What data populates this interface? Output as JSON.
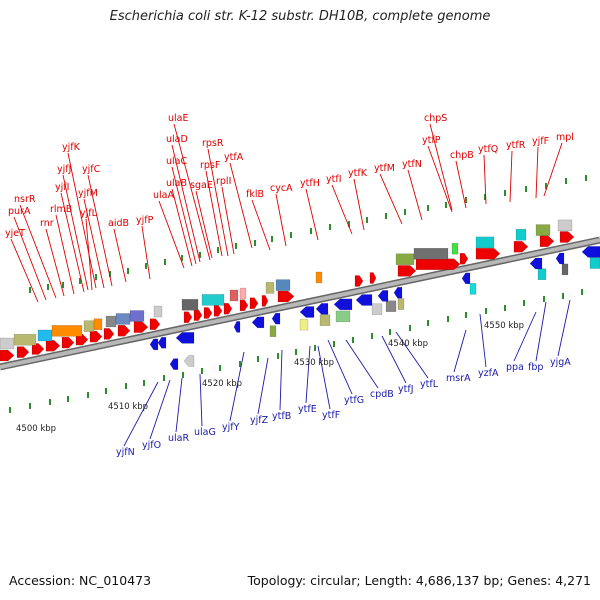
{
  "title": "Escherichia coli str. K-12 substr. DH10B, complete genome",
  "accession": "Accession: NC_010473",
  "summary": "Topology: circular; Length: 4,686,137 bp; Genes: 4,271",
  "scale_labels": [
    "4500 kbp",
    "4510 kbp",
    "4520 kbp",
    "4530 kbp",
    "4540 kbp",
    "4550 kbp"
  ],
  "colors": {
    "forward_label": "#dd0000",
    "reverse_label": "#1a1aaa",
    "forward_gene": "#ee0000",
    "reverse_gene": "#1010dd",
    "backbone": "#999999",
    "tick": "#2e8b2e"
  },
  "forward_labels": [
    "yjeT",
    "purA",
    "nsrR",
    "rnr",
    "rlmB",
    "yjfI",
    "yjfJ",
    "yjfK",
    "yjfL",
    "yjfM",
    "yjfC",
    "aidB",
    "yjfP",
    "ulaA",
    "ulaB",
    "ulaC",
    "ulaD",
    "ulaE",
    "sgaE",
    "rpsF",
    "rpsR",
    "rplI",
    "ytfA",
    "fklB",
    "cycA",
    "ytfH",
    "ytfI",
    "ytfK",
    "ytfM",
    "ytfN",
    "ytfP",
    "chpS",
    "chpB",
    "ytfQ",
    "ytfR",
    "yjfF",
    "mpl"
  ],
  "reverse_labels": [
    "yjfN",
    "yjfO",
    "ulaR",
    "ulaG",
    "yjfY",
    "yjfZ",
    "ytfB",
    "ytfE",
    "ytfF",
    "ytfG",
    "cpdB",
    "ytfJ",
    "ytfL",
    "msrA",
    "yzfA",
    "ppa",
    "fbp",
    "yjgA"
  ]
}
